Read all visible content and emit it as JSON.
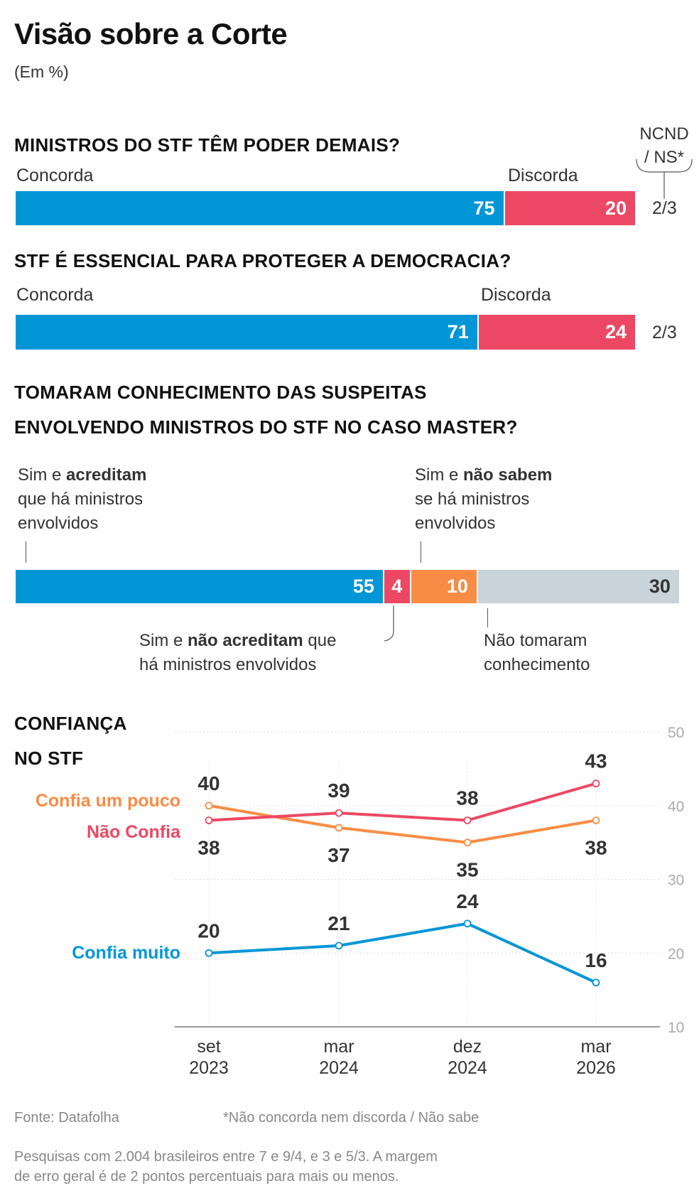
{
  "title": "Visão sobre a Corte",
  "subtitle": "(Em %)",
  "colors": {
    "blue": "#0396d6",
    "red": "#ec4863",
    "orange": "#f98c45",
    "gray": "#c9d3da"
  },
  "q1": {
    "heading": "MINISTROS DO STF TÊM PODER DEMAIS?",
    "concorda_label": "Concorda",
    "discorda_label": "Discorda",
    "ncnd_label_1": "NCND",
    "ncnd_label_2": "/ NS*",
    "concorda": 75,
    "discorda": 20,
    "ncnd": "2/3"
  },
  "q2": {
    "heading": "STF É ESSENCIAL PARA PROTEGER A DEMOCRACIA?",
    "concorda_label": "Concorda",
    "discorda_label": "Discorda",
    "concorda": 71,
    "discorda": 24,
    "ncnd": "2/3"
  },
  "q3": {
    "heading_1": "TOMARAM CONHECIMENTO DAS SUSPEITAS",
    "heading_2": "ENVOLVENDO MINISTROS DO STF NO CASO MASTER?",
    "segments": [
      {
        "value": 55,
        "color": "#0396d6"
      },
      {
        "value": 4,
        "color": "#ec4863"
      },
      {
        "value": 10,
        "color": "#f98c45"
      },
      {
        "value": 30,
        "color": "#c9d3da"
      }
    ],
    "ann_acreditam": {
      "a": "Sim e ",
      "b": "acreditam",
      "l2": "que há ministros",
      "l3": "envolvidos"
    },
    "ann_nao_sabem": {
      "a": "Sim e ",
      "b": "não sabem",
      "l2": "se há ministros",
      "l3": "envolvidos"
    },
    "ann_nao_acreditam": {
      "a": "Sim e ",
      "b": "não acreditam",
      "c": " que",
      "l2": "há ministros envolvidos"
    },
    "ann_nao_tomaram": {
      "l1": "Não tomaram",
      "l2": "conhecimento"
    }
  },
  "chart_data": {
    "type": "line",
    "title": "CONFIANÇA NO STF",
    "title_1": "CONFIANÇA",
    "title_2": "NO STF",
    "x_1": [
      "set",
      "mar",
      "dez",
      "mar"
    ],
    "x_2": [
      "2023",
      "2024",
      "2024",
      "2026"
    ],
    "categories": [
      "set 2023",
      "mar 2024",
      "dez 2024",
      "mar 2026"
    ],
    "ylim": [
      10,
      50
    ],
    "yticks": [
      "10",
      "20",
      "30",
      "40",
      "50"
    ],
    "grid": true,
    "series": [
      {
        "name": "Confia um pouco",
        "color": "#f98c45",
        "values": [
          40,
          37,
          35,
          38
        ]
      },
      {
        "name": "Não Confia",
        "color": "#ec4863",
        "values": [
          38,
          39,
          38,
          43
        ]
      },
      {
        "name": "Confia muito",
        "color": "#0396d6",
        "values": [
          20,
          21,
          24,
          16
        ]
      }
    ]
  },
  "footer": {
    "source": "Fonte: Datafolha",
    "footnote": "*Não concorda nem discorda / Não sabe",
    "note_1": "Pesquisas com 2.004 brasileiros entre 7 e 9/4, e 3 e 5/3. A margem",
    "note_2": "de erro geral é de 2 pontos percentuais para mais ou menos."
  }
}
